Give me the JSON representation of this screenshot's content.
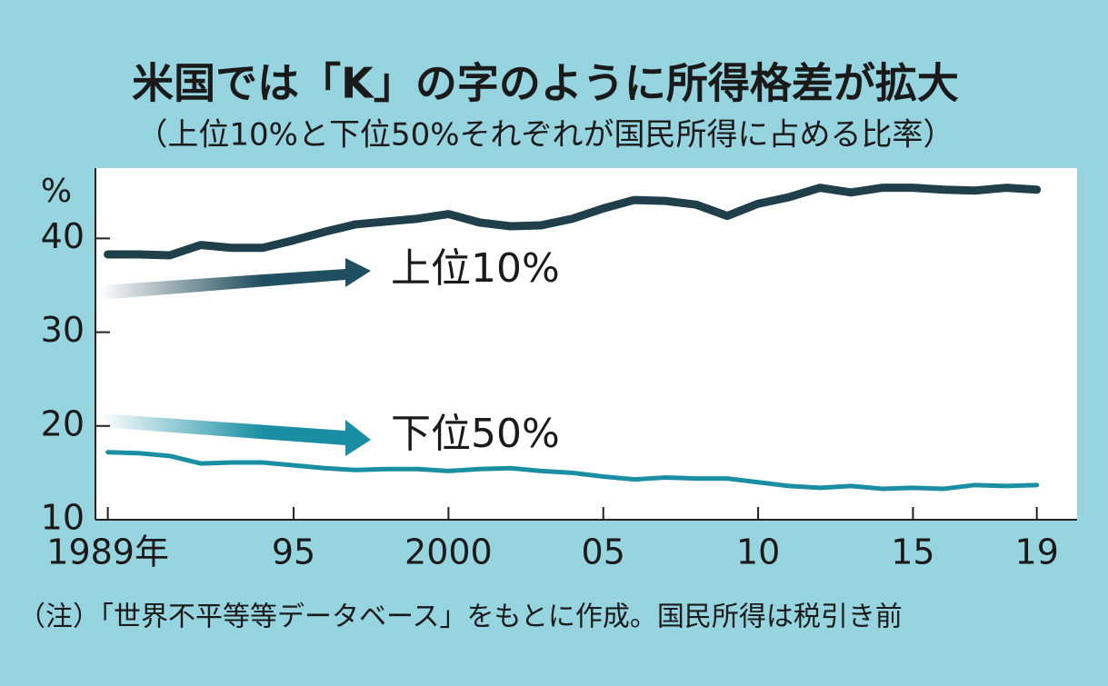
{
  "chart_data": {
    "type": "line",
    "title": "米国では「K」の字のように所得格差が拡大",
    "subtitle": "（上位10%と下位50%それぞれが国民所得に占める比率）",
    "ylabel": "%",
    "note": "（注）「世界不平等等データベース」をもとに作成。国民所得は税引き前",
    "x": [
      1989,
      1990,
      1991,
      1992,
      1993,
      1994,
      1995,
      1996,
      1997,
      1998,
      1999,
      2000,
      2001,
      2002,
      2003,
      2004,
      2005,
      2006,
      2007,
      2008,
      2009,
      2010,
      2011,
      2012,
      2013,
      2014,
      2015,
      2016,
      2017,
      2018,
      2019
    ],
    "series": [
      {
        "name": "上位10%",
        "color": "#1f3f4a",
        "values": [
          38.3,
          38.3,
          38.2,
          39.3,
          39.0,
          39.0,
          39.8,
          40.7,
          41.5,
          41.8,
          42.1,
          42.6,
          41.7,
          41.3,
          41.4,
          42.1,
          43.2,
          44.1,
          44.0,
          43.6,
          42.4,
          43.7,
          44.4,
          45.4,
          44.9,
          45.4,
          45.4,
          45.2,
          45.1,
          45.4,
          45.2
        ]
      },
      {
        "name": "下位50%",
        "color": "#1a8fa3",
        "values": [
          17.2,
          17.1,
          16.8,
          16.0,
          16.1,
          16.1,
          15.8,
          15.5,
          15.3,
          15.4,
          15.4,
          15.2,
          15.4,
          15.5,
          15.2,
          15.0,
          14.6,
          14.3,
          14.5,
          14.4,
          14.4,
          14.0,
          13.6,
          13.4,
          13.6,
          13.3,
          13.4,
          13.3,
          13.7,
          13.6,
          13.7
        ]
      }
    ],
    "xlim": [
      1988.6,
      2020.3
    ],
    "xticks": [
      {
        "value": 1989,
        "label": "1989年"
      },
      {
        "value": 1995,
        "label": "95"
      },
      2000,
      {
        "value": 2005,
        "label": "05"
      },
      {
        "value": 2010,
        "label": "10"
      },
      {
        "value": 2015,
        "label": "15"
      },
      {
        "value": 2019,
        "label": "19"
      }
    ],
    "ylim": [
      10,
      47.5
    ],
    "yticks": [
      10,
      20,
      30,
      40
    ]
  }
}
